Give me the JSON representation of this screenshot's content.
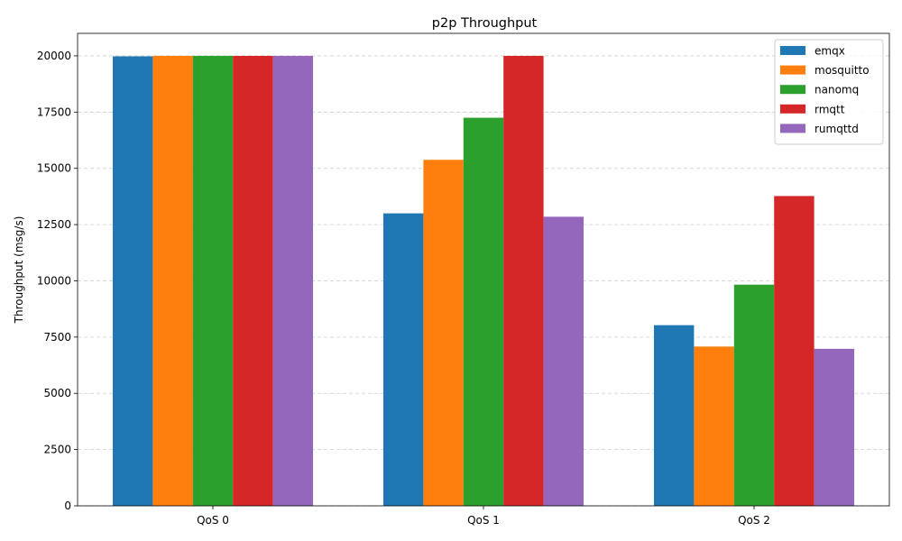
{
  "chart_data": {
    "type": "bar",
    "title": "p2p Throughput",
    "xlabel": "",
    "ylabel": "Throughput (msg/s)",
    "categories": [
      "QoS 0",
      "QoS 1",
      "QoS 2"
    ],
    "ylim": [
      0,
      21000
    ],
    "yticks": [
      0,
      2500,
      5000,
      7500,
      10000,
      12500,
      15000,
      17500,
      20000
    ],
    "grid": "y-dashed",
    "legend_position": "top-right",
    "series": [
      {
        "name": "emqx",
        "color": "#1f77b4",
        "values": [
          19980,
          13000,
          8030
        ]
      },
      {
        "name": "mosquitto",
        "color": "#ff7f0e",
        "values": [
          20000,
          15380,
          7080
        ]
      },
      {
        "name": "nanomq",
        "color": "#2ca02c",
        "values": [
          20000,
          17250,
          9830
        ]
      },
      {
        "name": "rmqtt",
        "color": "#d62728",
        "values": [
          20000,
          20000,
          13770
        ]
      },
      {
        "name": "rumqttd",
        "color": "#9467bd",
        "values": [
          20000,
          12850,
          6980
        ]
      }
    ]
  }
}
